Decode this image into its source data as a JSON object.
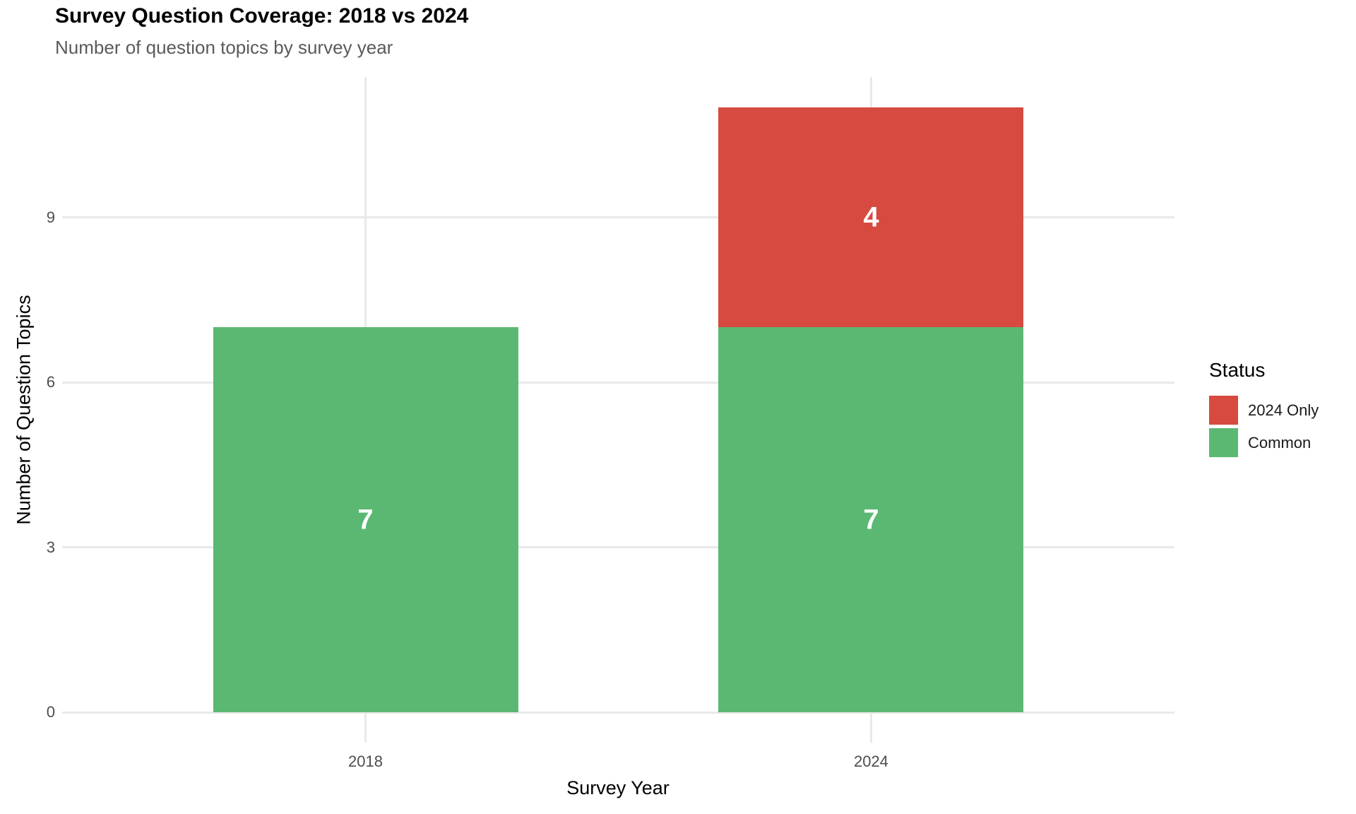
{
  "title": "Survey Question Coverage: 2018 vs 2024",
  "subtitle": "Number of question topics by survey year",
  "colors": {
    "common_green": "#5bb873",
    "only2024_red": "#d64a40",
    "grid": "#e9e9e9",
    "tick_text": "#4d4d4d",
    "subtitle_text": "#5a5a5a",
    "value_label": "#ffffff",
    "background": "#ffffff"
  },
  "chart_data": {
    "type": "bar",
    "stacked": true,
    "title": "Survey Question Coverage: 2018 vs 2024",
    "subtitle": "Number of question topics by survey year",
    "categories": [
      "2018",
      "2024"
    ],
    "series": [
      {
        "name": "Common",
        "color": "#5bb873",
        "values": [
          7,
          7
        ]
      },
      {
        "name": "2024 Only",
        "color": "#d64a40",
        "values": [
          0,
          4
        ]
      }
    ],
    "totals": [
      7,
      11
    ],
    "xlabel": "Survey Year",
    "ylabel": "Number of Question Topics",
    "yticks": [
      0,
      3,
      6,
      9
    ],
    "ylim": [
      -0.55,
      11.55
    ],
    "grid": "major-only",
    "legend_position": "right",
    "legend_title": "Status",
    "legend": [
      {
        "label": "2024 Only",
        "color": "#d64a40"
      },
      {
        "label": "Common",
        "color": "#5bb873"
      }
    ]
  }
}
